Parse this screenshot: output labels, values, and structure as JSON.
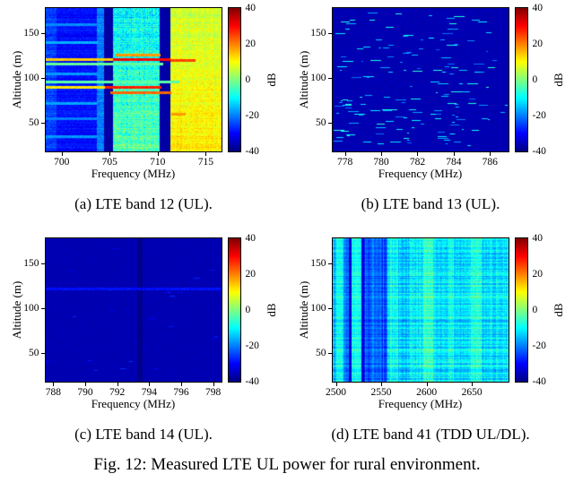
{
  "figure": {
    "caption": "Fig. 12: Measured LTE UL power for rural environment."
  },
  "chart_data": [
    {
      "type": "heatmap",
      "colormap": "jet",
      "label": "(a) LTE band 12 (UL).",
      "xlabel": "Frequency (MHz)",
      "ylabel": "Altitude (m)",
      "colorbar_label": "dB",
      "x_range": [
        698.3,
        716.6
      ],
      "x_ticks": [
        700,
        705,
        710,
        715
      ],
      "y_range": [
        18,
        178
      ],
      "y_ticks": [
        50,
        100,
        150
      ],
      "c_range": [
        -40,
        40
      ],
      "c_ticks": [
        40,
        20,
        0,
        -20,
        -40
      ],
      "seed": 11,
      "bands": [
        {
          "x0": 698.3,
          "x1": 699.4,
          "v": -25,
          "n": 3,
          "row": 2
        },
        {
          "x0": 699.4,
          "x1": 703.6,
          "v": -29,
          "n": 2.5,
          "row": 2
        },
        {
          "x0": 703.6,
          "x1": 704.4,
          "v": -20,
          "n": 3,
          "row": 2
        },
        {
          "x0": 704.4,
          "x1": 705.3,
          "v": -37,
          "n": 1.5
        },
        {
          "x0": 705.3,
          "x1": 710.2,
          "v": -7,
          "n": 6,
          "row": 3,
          "col": 2,
          "gv": 4
        },
        {
          "x0": 710.2,
          "x1": 711.3,
          "v": -37,
          "n": 1.5
        },
        {
          "x0": 711.3,
          "x1": 716.6,
          "v": 9,
          "n": 3.5,
          "row": 2,
          "col": 1.5,
          "gv": 3
        }
      ],
      "streaks": [
        {
          "y": 121,
          "x0": 698.3,
          "x1": 705.3,
          "v": 14,
          "h": 2
        },
        {
          "y": 121,
          "x0": 705.3,
          "x1": 711.2,
          "v": 30,
          "h": 2
        },
        {
          "y": 120,
          "x0": 711.2,
          "x1": 713.8,
          "v": 25,
          "h": 2
        },
        {
          "y": 126,
          "x0": 705.5,
          "x1": 710.2,
          "v": 18,
          "h": 1
        },
        {
          "y": 116,
          "x0": 698.3,
          "x1": 710.5,
          "v": -2,
          "h": 1
        },
        {
          "y": 96,
          "x0": 698.3,
          "x1": 712.2,
          "v": -3,
          "h": 1
        },
        {
          "y": 90,
          "x0": 698.3,
          "x1": 704.4,
          "v": 12,
          "h": 2
        },
        {
          "y": 90,
          "x0": 704.4,
          "x1": 710.3,
          "v": 28,
          "h": 2
        },
        {
          "y": 84,
          "x0": 705.0,
          "x1": 711.3,
          "v": 22,
          "h": 2
        },
        {
          "y": 60,
          "x0": 711.3,
          "x1": 712.8,
          "v": 18,
          "h": 1
        },
        {
          "y": 140,
          "x0": 698.3,
          "x1": 703.6,
          "v": -16,
          "h": 1
        },
        {
          "y": 105,
          "x0": 698.3,
          "x1": 703.6,
          "v": -18,
          "h": 1
        },
        {
          "y": 72,
          "x0": 698.3,
          "x1": 703.6,
          "v": -17,
          "h": 1
        },
        {
          "y": 55,
          "x0": 698.3,
          "x1": 703.6,
          "v": -20,
          "h": 1
        },
        {
          "y": 160,
          "x0": 698.3,
          "x1": 703.6,
          "v": -19,
          "h": 1
        },
        {
          "y": 35,
          "x0": 698.3,
          "x1": 703.6,
          "v": -18,
          "h": 1
        }
      ]
    },
    {
      "type": "heatmap",
      "colormap": "jet",
      "label": "(b) LTE band 13 (UL).",
      "xlabel": "Frequency (MHz)",
      "ylabel": "Altitude (m)",
      "colorbar_label": "dB",
      "x_range": [
        777.3,
        787.0
      ],
      "x_ticks": [
        778,
        780,
        782,
        784,
        786
      ],
      "y_range": [
        18,
        178
      ],
      "y_ticks": [
        50,
        100,
        150
      ],
      "c_range": [
        -40,
        40
      ],
      "c_ticks": [
        40,
        20,
        0,
        -20,
        -40
      ],
      "seed": 22,
      "bands": [
        {
          "x0": 777.3,
          "x1": 787.0,
          "v": -36,
          "n": 1.2
        }
      ],
      "streaks": [],
      "dashes": {
        "count": 160,
        "len_min": 2,
        "len_max": 13,
        "v_min": -22,
        "v_max": -6,
        "bias_low": 0.55
      }
    },
    {
      "type": "heatmap",
      "colormap": "jet",
      "label": "(c) LTE band 14 (UL).",
      "xlabel": "Frequency (MHz)",
      "ylabel": "Altitude (m)",
      "colorbar_label": "dB",
      "x_range": [
        787.5,
        798.5
      ],
      "x_ticks": [
        788,
        790,
        792,
        794,
        796,
        798
      ],
      "y_range": [
        18,
        178
      ],
      "y_ticks": [
        50,
        100,
        150
      ],
      "c_range": [
        -40,
        40
      ],
      "c_ticks": [
        40,
        20,
        0,
        -20,
        -40
      ],
      "seed": 33,
      "bands": [
        {
          "x0": 787.5,
          "x1": 793.2,
          "v": -36,
          "n": 0.8
        },
        {
          "x0": 793.2,
          "x1": 793.55,
          "v": -39,
          "n": 0.5
        },
        {
          "x0": 793.55,
          "x1": 798.5,
          "v": -36,
          "n": 0.8
        }
      ],
      "streaks": [
        {
          "y": 122,
          "x0": 787.5,
          "x1": 798.5,
          "v": -29,
          "h": 1
        }
      ],
      "dashes": {
        "count": 22,
        "len_min": 2,
        "len_max": 8,
        "v_min": -32,
        "v_max": -26,
        "bias_low": 0.5
      }
    },
    {
      "type": "heatmap",
      "colormap": "jet",
      "label": "(d) LTE band 41 (TDD UL/DL).",
      "xlabel": "Frequency (MHz)",
      "ylabel": "Altitude (m)",
      "colorbar_label": "dB",
      "x_range": [
        2496,
        2690
      ],
      "x_ticks": [
        2500,
        2550,
        2600,
        2650
      ],
      "y_range": [
        18,
        178
      ],
      "y_ticks": [
        50,
        100,
        150
      ],
      "c_range": [
        -40,
        40
      ],
      "c_ticks": [
        40,
        20,
        0,
        -20,
        -40
      ],
      "seed": 44,
      "bands": [
        {
          "x0": 2496,
          "x1": 2500,
          "v": -15,
          "n": 2.5,
          "row": 4,
          "col": 2
        },
        {
          "x0": 2500,
          "x1": 2508,
          "v": -9,
          "n": 2.5,
          "row": 4,
          "col": 2
        },
        {
          "x0": 2508,
          "x1": 2514,
          "v": -21,
          "n": 2.5,
          "row": 3,
          "col": 2
        },
        {
          "x0": 2514,
          "x1": 2516.5,
          "v": -33,
          "n": 1.5,
          "row": 2
        },
        {
          "x0": 2516.5,
          "x1": 2528,
          "v": -9,
          "n": 2.5,
          "row": 4,
          "col": 2
        },
        {
          "x0": 2528,
          "x1": 2531,
          "v": -33,
          "n": 1.5,
          "row": 2
        },
        {
          "x0": 2531,
          "x1": 2556,
          "v": -23,
          "n": 2,
          "row": 3,
          "col": 5
        },
        {
          "x0": 2556,
          "x1": 2568,
          "v": -10,
          "n": 3,
          "row": 5,
          "col": 3
        },
        {
          "x0": 2568,
          "x1": 2580,
          "v": -14,
          "n": 3,
          "row": 5,
          "col": 3
        },
        {
          "x0": 2580,
          "x1": 2596,
          "v": -11,
          "n": 3.5,
          "row": 5,
          "col": 3
        },
        {
          "x0": 2596,
          "x1": 2607,
          "v": -5,
          "n": 3,
          "row": 5,
          "col": 2
        },
        {
          "x0": 2607,
          "x1": 2624,
          "v": -13,
          "n": 3,
          "row": 5,
          "col": 3
        },
        {
          "x0": 2624,
          "x1": 2630,
          "v": -8,
          "n": 3,
          "row": 5,
          "col": 2
        },
        {
          "x0": 2630,
          "x1": 2648,
          "v": -13,
          "n": 3,
          "row": 5,
          "col": 3
        },
        {
          "x0": 2648,
          "x1": 2660,
          "v": -7,
          "n": 3,
          "row": 5,
          "col": 2
        },
        {
          "x0": 2660,
          "x1": 2690,
          "v": -12,
          "n": 3,
          "row": 5,
          "col": 3
        }
      ],
      "streaks": []
    }
  ]
}
